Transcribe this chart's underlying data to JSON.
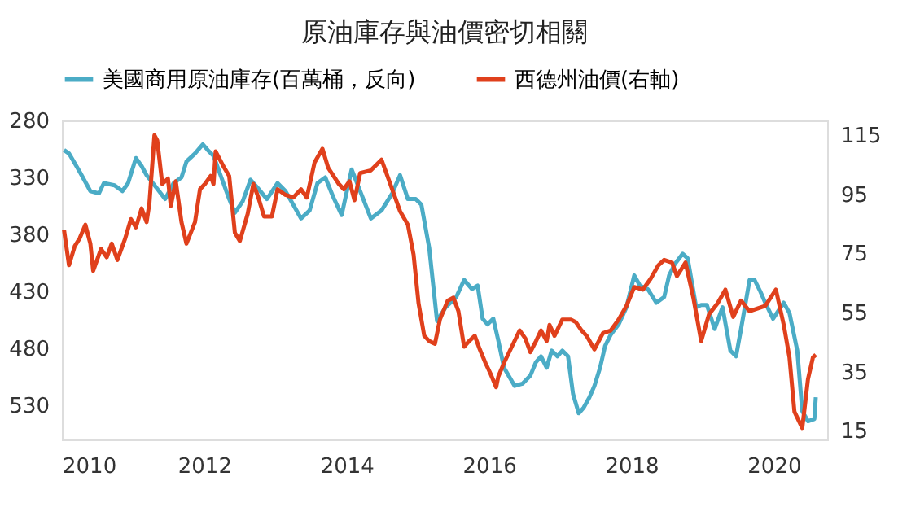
{
  "chart_data": {
    "type": "line",
    "title": "原油庫存與油價密切相關",
    "xlim": [
      2010,
      2020.75
    ],
    "xticks": [
      2010,
      2012,
      2014,
      2016,
      2018,
      2020
    ],
    "ylim": [
      560,
      280
    ],
    "yticks": [
      280,
      330,
      380,
      430,
      480,
      530
    ],
    "y2lim": [
      12,
      120
    ],
    "y2ticks": [
      15,
      35,
      55,
      75,
      95,
      115
    ],
    "grid": false,
    "legend": "top",
    "line_style": "solid",
    "marker": "none",
    "series": [
      {
        "name": "美國商用原油庫存(百萬桶，反向)",
        "color": "#4bacc6",
        "axis": "y",
        "x": [
          2010.03,
          2010.1,
          2010.25,
          2010.4,
          2010.52,
          2010.59,
          2010.74,
          2010.85,
          2010.93,
          2011.04,
          2011.12,
          2011.19,
          2011.34,
          2011.45,
          2011.57,
          2011.68,
          2011.75,
          2011.87,
          2011.98,
          2012.05,
          2012.13,
          2012.24,
          2012.35,
          2012.43,
          2012.54,
          2012.65,
          2012.76,
          2012.88,
          2013.03,
          2013.14,
          2013.25,
          2013.36,
          2013.48,
          2013.59,
          2013.7,
          2013.81,
          2013.93,
          2014.07,
          2014.19,
          2014.34,
          2014.49,
          2014.64,
          2014.75,
          2014.86,
          2014.97,
          2015.05,
          2015.16,
          2015.27,
          2015.39,
          2015.54,
          2015.65,
          2015.76,
          2015.84,
          2015.91,
          2015.98,
          2016.06,
          2016.13,
          2016.21,
          2016.36,
          2016.47,
          2016.58,
          2016.66,
          2016.73,
          2016.81,
          2016.88,
          2016.96,
          2017.03,
          2017.11,
          2017.18,
          2017.26,
          2017.33,
          2017.41,
          2017.48,
          2017.56,
          2017.63,
          2017.71,
          2017.82,
          2017.93,
          2018.04,
          2018.12,
          2018.23,
          2018.35,
          2018.46,
          2018.53,
          2018.61,
          2018.72,
          2018.79,
          2018.91,
          2018.98,
          2019.06,
          2019.17,
          2019.28,
          2019.39,
          2019.47,
          2019.54,
          2019.66,
          2019.73,
          2019.81,
          2019.88,
          2019.99,
          2020.14,
          2020.22,
          2020.33,
          2020.4,
          2020.48,
          2020.57,
          2020.59
        ],
        "values": [
          306,
          309,
          325,
          342,
          344,
          335,
          337,
          342,
          335,
          313,
          320,
          328,
          340,
          349,
          335,
          330,
          316,
          309,
          301,
          306,
          311,
          330,
          349,
          361,
          351,
          332,
          340,
          349,
          335,
          342,
          354,
          366,
          359,
          335,
          330,
          347,
          363,
          323,
          342,
          366,
          359,
          344,
          328,
          349,
          349,
          354,
          392,
          456,
          444,
          435,
          420,
          428,
          425,
          454,
          459,
          454,
          473,
          497,
          513,
          511,
          504,
          492,
          487,
          497,
          482,
          487,
          482,
          487,
          520,
          537,
          532,
          523,
          513,
          497,
          478,
          468,
          459,
          444,
          416,
          425,
          428,
          440,
          435,
          416,
          406,
          397,
          401,
          444,
          442,
          442,
          463,
          444,
          482,
          487,
          463,
          420,
          420,
          430,
          440,
          454,
          440,
          449,
          482,
          535,
          544,
          542,
          523
        ]
      },
      {
        "name": "西德州油價(右軸)",
        "color": "#e0401c",
        "axis": "y2",
        "x": [
          2010.03,
          2010.1,
          2010.18,
          2010.25,
          2010.33,
          2010.4,
          2010.44,
          2010.55,
          2010.63,
          2010.7,
          2010.78,
          2010.89,
          2010.97,
          2011.04,
          2011.12,
          2011.19,
          2011.23,
          2011.3,
          2011.34,
          2011.41,
          2011.49,
          2011.53,
          2011.6,
          2011.68,
          2011.75,
          2011.87,
          2011.94,
          2012.01,
          2012.09,
          2012.13,
          2012.16,
          2012.28,
          2012.35,
          2012.43,
          2012.5,
          2012.61,
          2012.69,
          2012.76,
          2012.84,
          2012.95,
          2013.03,
          2013.14,
          2013.25,
          2013.36,
          2013.44,
          2013.55,
          2013.66,
          2013.74,
          2013.89,
          2013.96,
          2014.04,
          2014.11,
          2014.19,
          2014.34,
          2014.49,
          2014.64,
          2014.75,
          2014.86,
          2014.94,
          2015.01,
          2015.09,
          2015.16,
          2015.24,
          2015.31,
          2015.42,
          2015.5,
          2015.57,
          2015.65,
          2015.72,
          2015.8,
          2015.87,
          2015.95,
          2016.02,
          2016.1,
          2016.13,
          2016.21,
          2016.32,
          2016.43,
          2016.51,
          2016.58,
          2016.66,
          2016.73,
          2016.81,
          2016.85,
          2016.92,
          2017.03,
          2017.15,
          2017.22,
          2017.3,
          2017.37,
          2017.48,
          2017.6,
          2017.71,
          2017.82,
          2017.93,
          2018.04,
          2018.16,
          2018.27,
          2018.38,
          2018.46,
          2018.57,
          2018.64,
          2018.76,
          2018.87,
          2018.98,
          2019.09,
          2019.21,
          2019.32,
          2019.43,
          2019.54,
          2019.66,
          2019.77,
          2019.88,
          2020.03,
          2020.14,
          2020.22,
          2020.29,
          2020.4,
          2020.48,
          2020.55,
          2020.59
        ],
        "values": [
          82.9,
          71.0,
          77.4,
          80.1,
          84.7,
          78.3,
          69.1,
          76.5,
          73.7,
          78.3,
          72.8,
          80.1,
          86.6,
          83.8,
          90.2,
          85.6,
          92.1,
          115,
          113.2,
          98.5,
          100.3,
          91.1,
          99.4,
          85.6,
          78.3,
          85.6,
          96.7,
          98.5,
          101.2,
          98.5,
          109.5,
          104,
          101.2,
          82.0,
          79.2,
          88.4,
          98.5,
          93.9,
          87.5,
          87.5,
          96.7,
          94.8,
          93.9,
          96.7,
          93.9,
          105.8,
          110.4,
          104,
          98.5,
          96.7,
          99.4,
          93.0,
          102.2,
          103.1,
          106.7,
          96.7,
          89.3,
          84.7,
          74.6,
          58.1,
          47.1,
          45.3,
          44.4,
          52.6,
          59.0,
          60.0,
          55.4,
          43.4,
          45.3,
          47.1,
          42.5,
          37.9,
          34.3,
          29.7,
          33.3,
          37.9,
          43.4,
          48.9,
          46.2,
          41.6,
          45.3,
          48.9,
          45.3,
          50.8,
          47.1,
          52.6,
          52.6,
          51.7,
          48.9,
          47.1,
          42.5,
          48.0,
          48.9,
          52.6,
          57.2,
          63.6,
          62.7,
          66.4,
          71.0,
          72.8,
          71.9,
          67.3,
          71.9,
          60.0,
          45.3,
          54.4,
          58.1,
          62.7,
          53.5,
          59.0,
          55.4,
          56.3,
          57.2,
          62.7,
          50.8,
          39.8,
          21.4,
          15.9,
          32.4,
          39.8,
          40.7
        ]
      }
    ]
  }
}
